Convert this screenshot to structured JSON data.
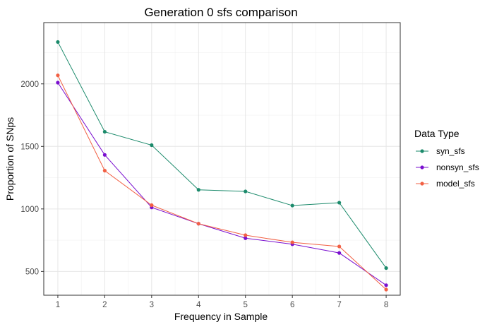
{
  "chart_data": {
    "type": "line",
    "title": "Generation 0 sfs comparison",
    "xlabel": "Frequency in Sample",
    "ylabel": "Proportion of SNps",
    "x": [
      1,
      2,
      3,
      4,
      5,
      6,
      7,
      8
    ],
    "xlim": [
      0.7,
      8.3
    ],
    "ylim": [
      310,
      2490
    ],
    "xticks": [
      1,
      2,
      3,
      4,
      5,
      6,
      7,
      8
    ],
    "yticks": [
      500,
      1000,
      1500,
      2000
    ],
    "grid": true,
    "legend": {
      "title": "Data Type",
      "position": "right"
    },
    "series": [
      {
        "name": "syn_sfs",
        "color": "#1b8a6b",
        "values": [
          2335,
          1617,
          1510,
          1153,
          1140,
          1027,
          1050,
          527
        ]
      },
      {
        "name": "nonsyn_sfs",
        "color": "#7a0fcf",
        "values": [
          2010,
          1432,
          1012,
          882,
          766,
          718,
          648,
          390
        ]
      },
      {
        "name": "model_sfs",
        "color": "#f26044",
        "values": [
          2068,
          1306,
          1030,
          882,
          790,
          733,
          700,
          355
        ]
      }
    ]
  }
}
